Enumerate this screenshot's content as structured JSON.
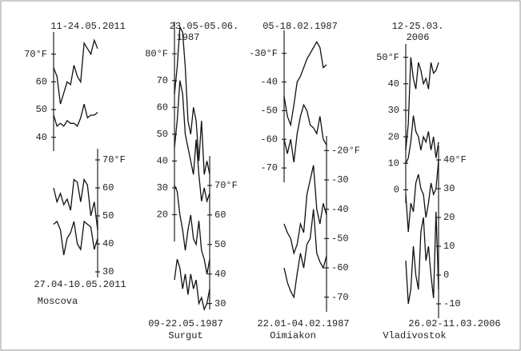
{
  "chart_data": [
    {
      "type": "line",
      "title": "11-24.05.2011",
      "axis_side": "left",
      "ylim": [
        35,
        78
      ],
      "yticks": [
        {
          "value": 70,
          "label": "70°F"
        },
        60,
        50,
        40
      ],
      "series": [
        {
          "color": "#111111",
          "values": [
            65,
            62,
            52,
            56,
            60,
            59,
            66,
            62,
            60,
            74,
            72,
            70,
            75,
            72
          ]
        },
        {
          "color": "#111111",
          "values": [
            48,
            44,
            45,
            44,
            46,
            45,
            45,
            44,
            47,
            52,
            47,
            48,
            48,
            49
          ]
        }
      ]
    },
    {
      "type": "line",
      "title": "27.04-10.05.2011",
      "subtitle": "Moscova",
      "axis_side": "right",
      "ylim": [
        28,
        74
      ],
      "yticks": [
        {
          "value": 70,
          "label": "70°F"
        },
        60,
        50,
        40,
        30
      ],
      "series": [
        {
          "color": "#111111",
          "values": [
            60,
            55,
            58,
            54,
            56,
            52,
            63,
            62,
            55,
            63,
            61,
            50,
            55,
            45
          ]
        },
        {
          "color": "#111111",
          "values": [
            47,
            48,
            45,
            36,
            42,
            44,
            48,
            40,
            38,
            48,
            47,
            46,
            38,
            42
          ]
        }
      ]
    },
    {
      "type": "line",
      "title": "23.05-05.06.",
      "subtitle": "1987",
      "axis_side": "left",
      "ylim": [
        10,
        92
      ],
      "yticks": [
        {
          "value": 80,
          "label": "80°F"
        },
        70,
        60,
        50,
        40,
        30,
        20
      ],
      "series": [
        {
          "color": "#111111",
          "values": [
            65,
            75,
            90,
            88,
            75,
            55,
            50,
            60,
            55,
            40,
            55,
            35,
            40,
            35
          ]
        },
        {
          "color": "#111111",
          "values": [
            45,
            55,
            70,
            65,
            50,
            45,
            40,
            35,
            48,
            35,
            25,
            30,
            25,
            28
          ]
        }
      ]
    },
    {
      "type": "line",
      "title": "09-22.05.1987",
      "subtitle": "Surgut",
      "axis_side": "right",
      "ylim": [
        28,
        80
      ],
      "yticks": [
        {
          "value": 70,
          "label": "70°F"
        },
        60,
        50,
        40,
        30
      ],
      "series": [
        {
          "color": "#111111",
          "values": [
            70,
            68,
            60,
            55,
            48,
            55,
            60,
            52,
            50,
            58,
            48,
            45,
            40,
            45
          ]
        },
        {
          "color": "#111111",
          "values": [
            38,
            45,
            42,
            35,
            40,
            33,
            40,
            35,
            38,
            30,
            32,
            28,
            30,
            35
          ]
        }
      ]
    },
    {
      "type": "line",
      "title": "05-18.02.1987",
      "axis_side": "left",
      "ylim": [
        -75,
        -22
      ],
      "yticks": [
        {
          "value": -30,
          "label": "-30°F"
        },
        -40,
        -50,
        -60,
        -70
      ],
      "series": [
        {
          "color": "#111111",
          "values": [
            -45,
            -52,
            -55,
            -48,
            -40,
            -38,
            -35,
            -32,
            -30,
            -28,
            -26,
            -28,
            -35,
            -34
          ]
        },
        {
          "color": "#111111",
          "values": [
            -60,
            -65,
            -60,
            -68,
            -58,
            -52,
            -48,
            -50,
            -55,
            -56,
            -58,
            -52,
            -60,
            -62
          ]
        }
      ]
    },
    {
      "type": "line",
      "title": "22.01-04.02.1987",
      "subtitle": "Oimiakon",
      "axis_side": "right",
      "ylim": [
        -75,
        -15
      ],
      "yticks": [
        {
          "value": -20,
          "label": "-20°F"
        },
        -30,
        -40,
        -50,
        -60,
        -70
      ],
      "series": [
        {
          "color": "#111111",
          "values": [
            -45,
            -48,
            -50,
            -55,
            -52,
            -45,
            -48,
            -35,
            -30,
            -25,
            -40,
            -45,
            -38,
            -42
          ]
        },
        {
          "color": "#111111",
          "values": [
            -60,
            -65,
            -68,
            -70,
            -62,
            -55,
            -60,
            -52,
            -50,
            -40,
            -55,
            -58,
            -60,
            -56
          ]
        }
      ]
    },
    {
      "type": "line",
      "title": "12-25.03.",
      "subtitle": "2006",
      "axis_side": "left",
      "ylim": [
        -5,
        55
      ],
      "yticks": [
        {
          "value": 50,
          "label": "50°F"
        },
        40,
        30,
        20,
        10,
        0
      ],
      "series": [
        {
          "color": "#111111",
          "values": [
            15,
            25,
            50,
            42,
            38,
            48,
            45,
            40,
            42,
            38,
            48,
            44,
            45,
            48
          ]
        },
        {
          "color": "#111111",
          "values": [
            10,
            12,
            18,
            28,
            22,
            20,
            15,
            20,
            18,
            22,
            15,
            20,
            12,
            18
          ]
        }
      ]
    },
    {
      "type": "line",
      "title": "26.02-11.03.2006",
      "subtitle": "Vladivostok",
      "axis_side": "right",
      "ylim": [
        -15,
        45
      ],
      "yticks": [
        {
          "value": 40,
          "label": "40°F"
        },
        30,
        20,
        10,
        0,
        -10
      ],
      "series": [
        {
          "color": "#111111",
          "values": [
            28,
            15,
            25,
            22,
            32,
            35,
            30,
            28,
            20,
            25,
            32,
            28,
            30,
            40
          ]
        },
        {
          "color": "#111111",
          "values": [
            5,
            -10,
            -5,
            10,
            0,
            -5,
            15,
            20,
            5,
            10,
            0,
            -8,
            22,
            -5
          ]
        }
      ]
    }
  ]
}
